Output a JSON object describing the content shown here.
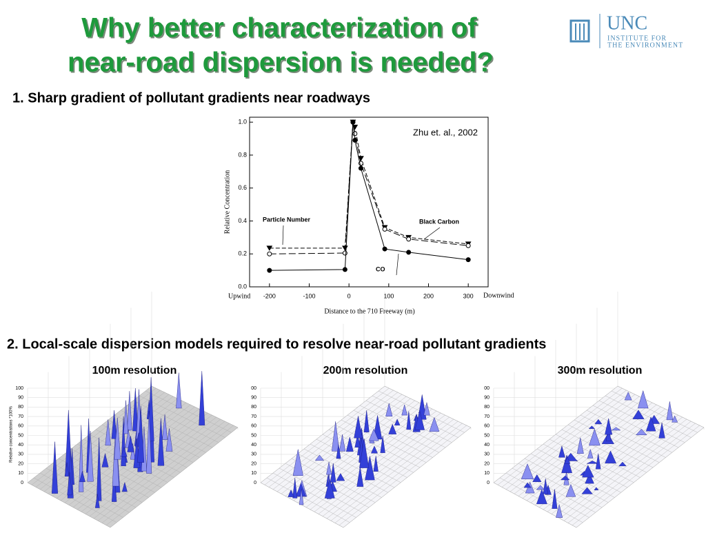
{
  "header": {
    "title_lines": [
      "Why better characterization of",
      "near-road dispersion is needed?"
    ],
    "logo": {
      "name": "UNC",
      "lines": [
        "INSTITUTE FOR",
        "THE ENVIRONMENT"
      ]
    }
  },
  "sections": [
    {
      "heading": "1. Sharp gradient of pollutant gradients near roadways"
    },
    {
      "heading": "2. Local-scale dispersion models required to resolve near-road pollutant gradients"
    }
  ],
  "chart_data": {
    "type": "line",
    "xlabel": "Distance to the 710 Freeway (m)",
    "ylabel": "Relative Concentration",
    "annotation": "Zhu et. al., 2002",
    "x_end_labels": [
      "Upwind",
      "Downwind"
    ],
    "x": [
      -200,
      -10,
      10,
      15,
      30,
      90,
      150,
      300
    ],
    "series": [
      {
        "name": "Particle Number",
        "color": "#000000",
        "line_style": "dashed",
        "marker": "triangle",
        "values": [
          0.235,
          0.235,
          1.0,
          0.97,
          0.78,
          0.36,
          0.3,
          0.26
        ]
      },
      {
        "name": "Black Carbon",
        "color": "#000000",
        "line_style": "longdash",
        "marker": "circle-open",
        "values": [
          0.2,
          0.205,
          1.0,
          0.93,
          0.75,
          0.35,
          0.29,
          0.25
        ]
      },
      {
        "name": "CO",
        "color": "#000000",
        "line_style": "solid",
        "marker": "circle-filled",
        "values": [
          0.1,
          0.105,
          1.0,
          0.89,
          0.72,
          0.23,
          0.21,
          0.165
        ]
      }
    ],
    "xlim": [
      -250,
      350
    ],
    "ylim": [
      0,
      1.03
    ],
    "xticks": [
      -200,
      -100,
      0,
      100,
      200,
      300
    ],
    "yticks": [
      {
        "value": 0,
        "label": "0.0"
      },
      {
        "value": 0.2,
        "label": "0.2"
      },
      {
        "value": 0.4,
        "label": "0.4"
      },
      {
        "value": 0.6,
        "label": "0.6"
      },
      {
        "value": 0.8,
        "label": "0.8"
      },
      {
        "value": 1,
        "label": "1.0"
      }
    ]
  },
  "panels": [
    {
      "label": "100m resolution",
      "ylabel": "Relative concentrations *100%",
      "ticks": [
        100,
        90,
        80,
        70,
        60,
        50,
        40,
        30,
        20,
        10,
        0
      ]
    },
    {
      "label": "200m resolution",
      "ticks": [
        "00",
        90,
        80,
        70,
        60,
        50,
        40,
        30,
        20,
        10,
        0
      ]
    },
    {
      "label": "300m resolution",
      "ticks": [
        "00",
        90,
        80,
        70,
        60,
        50,
        40,
        30,
        20,
        10,
        0
      ]
    }
  ]
}
